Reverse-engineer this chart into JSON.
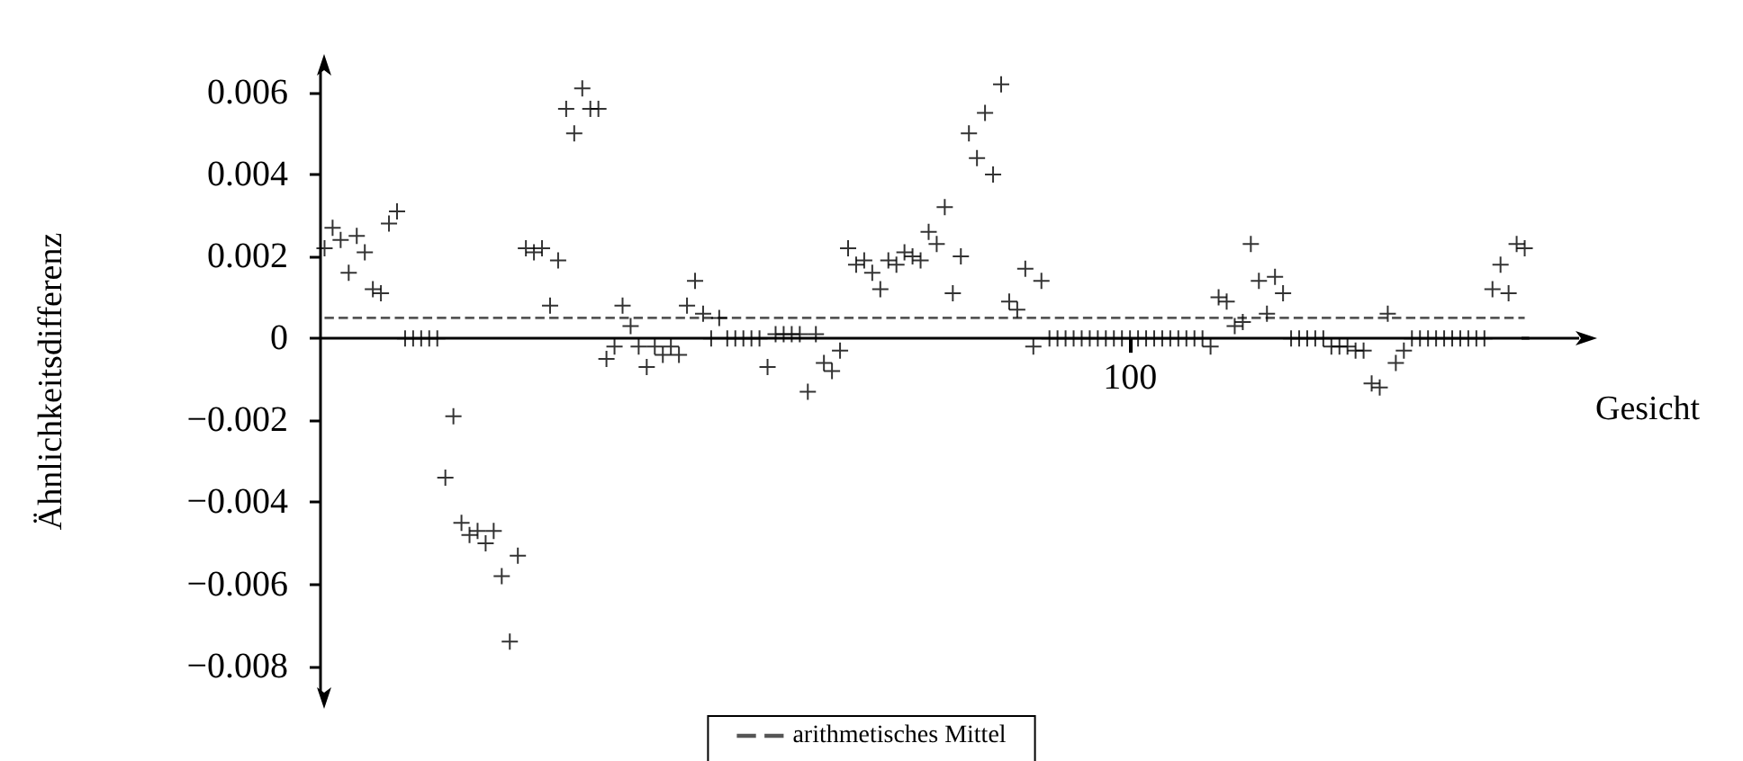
{
  "chart_data": {
    "type": "scatter",
    "xlabel": "Gesicht",
    "ylabel": "Ähnlichkeitsdifferenz",
    "categories": [
      null,
      null,
      null,
      null,
      null,
      null,
      null,
      null,
      null,
      null,
      null,
      null,
      null,
      null,
      null,
      null,
      null,
      null,
      null,
      null,
      null,
      null,
      null,
      null,
      null,
      null,
      null,
      null,
      null,
      null,
      null,
      null,
      null,
      null,
      null,
      null,
      null,
      null,
      null,
      null,
      null,
      null,
      null,
      null,
      null,
      null,
      null,
      null,
      null,
      null,
      null,
      null,
      null,
      null,
      null,
      null,
      null,
      null,
      null,
      null,
      null,
      null,
      null,
      null,
      null,
      null,
      null,
      null,
      null,
      null,
      null,
      null,
      null,
      null,
      null,
      null,
      null,
      null,
      null,
      null,
      null,
      null,
      null,
      null,
      null,
      null,
      null,
      null,
      null,
      null,
      null,
      null,
      null,
      null,
      null,
      null,
      null,
      null,
      null,
      null,
      "100",
      null,
      null,
      null,
      null,
      null,
      null,
      null,
      null,
      null,
      null,
      null,
      null,
      null,
      null,
      null,
      null,
      null,
      null,
      null,
      null,
      null,
      null,
      null,
      null,
      null,
      null,
      null,
      null,
      null,
      null,
      null,
      null,
      null,
      null,
      null,
      null,
      null,
      null,
      null,
      null,
      null,
      null,
      null,
      null,
      null,
      null,
      null,
      null,
      null
    ],
    "values": [
      0.0022,
      0.0027,
      0.0024,
      0.0016,
      0.0025,
      0.0021,
      0.0012,
      0.0011,
      0.0028,
      0.0031,
      0,
      0,
      0,
      0,
      0,
      -0.0034,
      -0.0019,
      -0.0045,
      -0.0048,
      -0.0047,
      -0.005,
      -0.0047,
      -0.0058,
      -0.0074,
      -0.0053,
      0.0022,
      0.0021,
      0.0022,
      0.0008,
      0.0019,
      0.0056,
      0.005,
      0.0061,
      0.0056,
      0.0056,
      -0.0005,
      -0.0002,
      0.0008,
      0.0003,
      -0.0002,
      -0.0007,
      -0.0002,
      -0.0004,
      -0.0002,
      -0.0004,
      0.0008,
      0.0014,
      0.0006,
      0,
      0.0005,
      0,
      0,
      0,
      0,
      0,
      -0.0007,
      0.0001,
      0.0001,
      0.0001,
      0.0001,
      -0.0013,
      0.0001,
      -0.0006,
      -0.0008,
      -0.0003,
      0.0022,
      0.0018,
      0.0019,
      0.0016,
      0.0012,
      0.0019,
      0.0018,
      0.0021,
      0.002,
      0.0019,
      0.0026,
      0.0023,
      0.0032,
      0.0011,
      0.002,
      0.005,
      0.0044,
      0.0055,
      0.004,
      0.0062,
      0.0009,
      0.0007,
      0.0017,
      -0.0002,
      0.0014,
      0,
      0,
      0,
      0,
      0,
      0,
      0,
      0,
      0,
      0,
      0,
      0,
      0,
      0,
      0,
      0,
      0,
      0,
      0,
      0,
      -0.0002,
      0.001,
      0.0009,
      0.0003,
      0.0004,
      0.0023,
      0.0014,
      0.0006,
      0.0015,
      0.0011,
      0,
      0,
      0,
      0,
      0,
      -0.0002,
      -0.0002,
      -0.0002,
      -0.0003,
      -0.0003,
      -0.0011,
      -0.0012,
      0.0006,
      -0.0006,
      -0.0003,
      0,
      0,
      0,
      0,
      0,
      0,
      0,
      0,
      0,
      0,
      0.0012,
      0.0018,
      0.0011,
      0.0023,
      0.0022
    ],
    "color": "#000000",
    "marker": "cross",
    "ylim": [
      -0.0086,
      0.0065
    ],
    "yticks": [
      {
        "value": -0.008,
        "label": "−0.008"
      },
      {
        "value": -0.006,
        "label": "−0.006"
      },
      {
        "value": -0.004,
        "label": "−0.004"
      },
      {
        "value": -0.002,
        "label": "−0.002"
      },
      {
        "value": 0,
        "label": "0"
      },
      {
        "value": 0.002,
        "label": "0.002"
      },
      {
        "value": 0.004,
        "label": "0.004"
      },
      {
        "value": 0.006,
        "label": "0.006"
      }
    ],
    "ref_lines": [
      {
        "axis": "y",
        "value": 0.0005,
        "label": "arithmetisches Mittel",
        "color": "#555555",
        "line_style": "dashed"
      }
    ],
    "legend": "bottom"
  }
}
